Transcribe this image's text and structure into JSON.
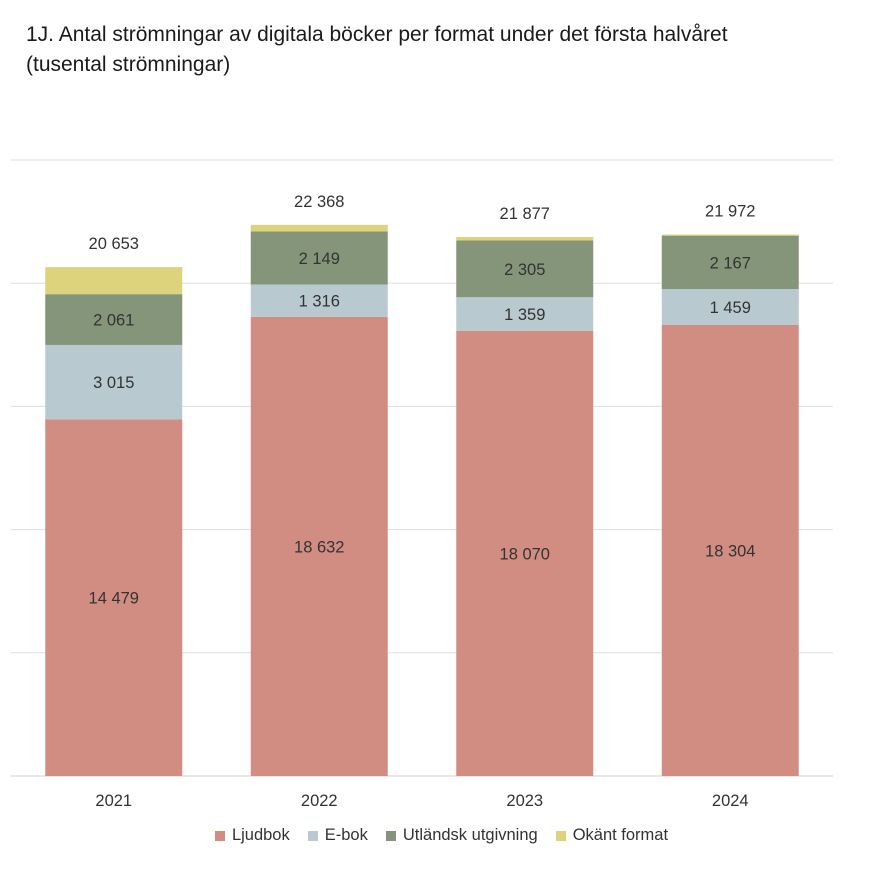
{
  "title": {
    "line1": "1J. Antal strömningar av digitala böcker per format under det första halvåret",
    "line2": "(tusental strömningar)"
  },
  "legend": [
    {
      "label": "Ljudbok",
      "color": "#d18d82"
    },
    {
      "label": "E-bok",
      "color": "#b8c9d0"
    },
    {
      "label": "Utländsk utgivning",
      "color": "#85957a"
    },
    {
      "label": "Okänt format",
      "color": "#dcd37c"
    }
  ],
  "chart_data": {
    "type": "bar",
    "stacked": true,
    "categories": [
      "2021",
      "2022",
      "2023",
      "2024"
    ],
    "series": [
      {
        "name": "Ljudbok",
        "color": "#d18d82",
        "values": [
          14479,
          18632,
          18070,
          18304
        ],
        "labels": [
          "14 479",
          "18 632",
          "18 070",
          "18 304"
        ]
      },
      {
        "name": "E-bok",
        "color": "#b8c9d0",
        "values": [
          3015,
          1316,
          1359,
          1459
        ],
        "labels": [
          "3 015",
          "1 316",
          "1 359",
          "1 459"
        ]
      },
      {
        "name": "Utländsk utgivning",
        "color": "#85957a",
        "values": [
          2061,
          2149,
          2305,
          2167
        ],
        "labels": [
          "2 061",
          "2 149",
          "2 305",
          "2 167"
        ]
      },
      {
        "name": "Okänt format",
        "color": "#dcd37c",
        "values": [
          1098,
          271,
          143,
          42
        ],
        "labels": []
      }
    ],
    "totals": [
      20653,
      22368,
      21877,
      21972
    ],
    "total_labels": [
      "20 653",
      "22 368",
      "21 877",
      "21 972"
    ],
    "ylim": [
      0,
      25000
    ],
    "grid": true,
    "legend_position": "bottom"
  }
}
